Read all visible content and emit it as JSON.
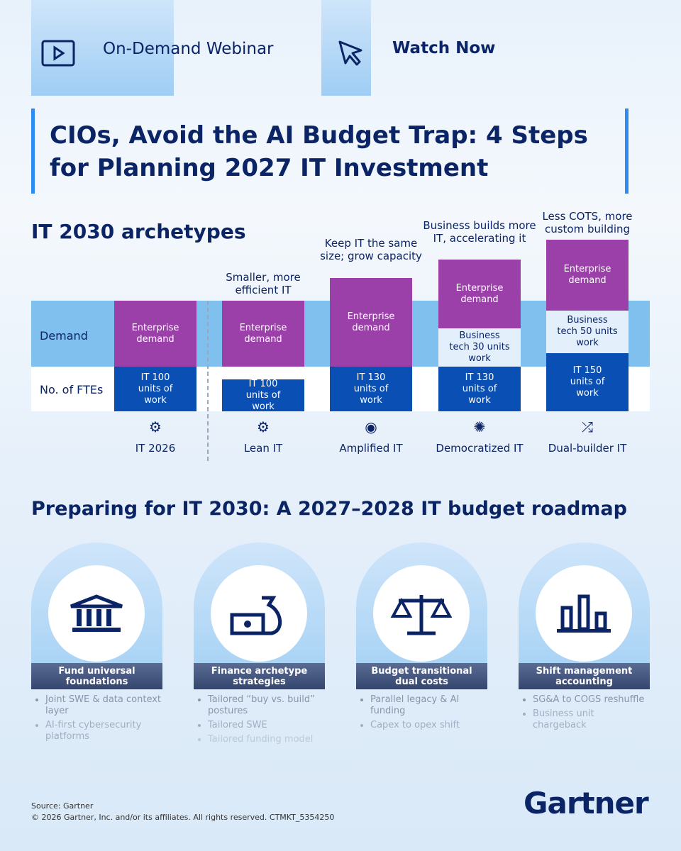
{
  "header": {
    "badge": "On-Demand Webinar",
    "cta": "Watch Now"
  },
  "title": "CIOs, Avoid the AI Budget Trap: 4 Steps for Planning 2027 IT Investment",
  "archetypes": {
    "title": "IT 2030 archetypes",
    "row_labels": [
      "Demand",
      "No. of FTEs"
    ],
    "columns": [
      {
        "demand": "Enterprise demand",
        "it": "IT 100 units of work",
        "name": "IT 2026"
      },
      {
        "caption": "Smaller, more efficient IT",
        "demand": "Enterprise demand",
        "it": "IT 100 units of work",
        "name": "Lean IT"
      },
      {
        "caption": "Keep IT the same size; grow capacity",
        "demand": "Enterprise demand",
        "it": "IT 130 units of work",
        "name": "Amplified IT"
      },
      {
        "caption": "Business builds more IT, accelerating it",
        "demand": "Enterprise demand",
        "business": "Business tech 30 units work",
        "it": "IT 130 units of work",
        "name": "Democratized IT"
      },
      {
        "caption": "Less COTS, more custom building",
        "demand": "Enterprise demand",
        "business": "Business tech 50 units work",
        "it": "IT 150 units of work",
        "name": "Dual-builder IT"
      }
    ]
  },
  "roadmap": {
    "title": "Preparing for IT 2030: A 2027–2028 IT budget roadmap",
    "cards": [
      {
        "title": "Fund universal foundations",
        "bullets": [
          "Joint SWE & data context layer",
          "AI-first cybersecurity platforms"
        ]
      },
      {
        "title": "Finance archetype strategies",
        "bullets": [
          "Tailored “buy vs. build” postures",
          "Tailored SWE",
          "Tailored funding model"
        ]
      },
      {
        "title": "Budget transitional dual costs",
        "bullets": [
          "Parallel legacy & AI funding",
          "Capex to opex shift"
        ]
      },
      {
        "title": "Shift management accounting",
        "bullets": [
          "SG&A to COGS reshuffle",
          "Business unit chargeback"
        ]
      }
    ]
  },
  "footer": {
    "source": "Source: Gartner",
    "copyright": "© 2026 Gartner, Inc. and/or its affiliates. All rights reserved. CTMKT_5354250",
    "logo": "Gartner"
  }
}
